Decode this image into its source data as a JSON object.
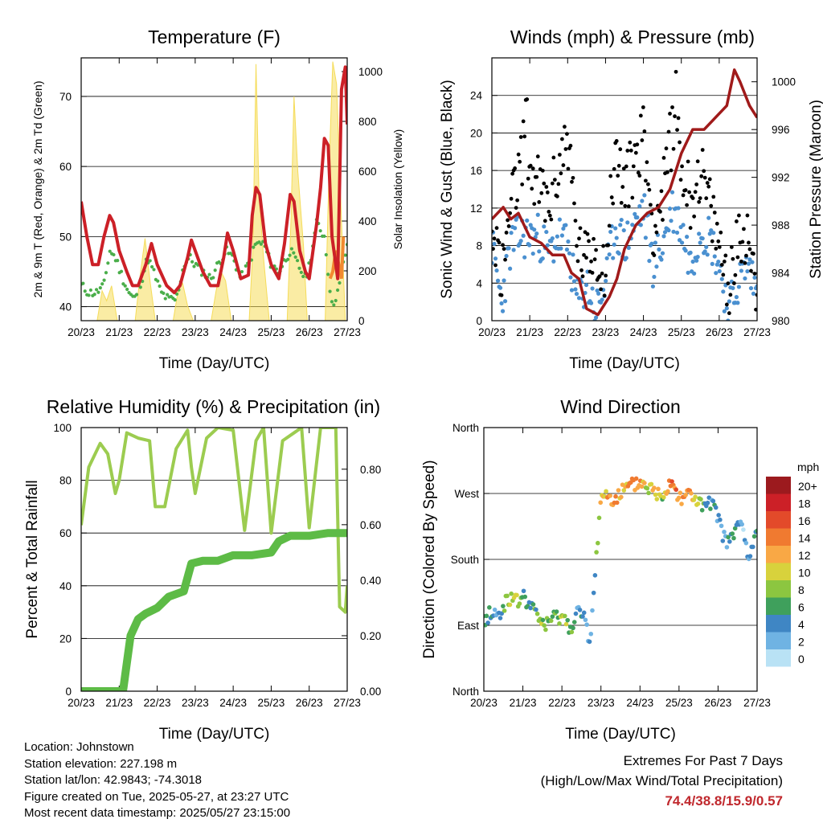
{
  "colors": {
    "temp2m": "#cc2027",
    "temp9m": "#f28a30",
    "dewpoint": "#4aae4a",
    "solar": "#f5dc5a",
    "gust": "#000000",
    "wind": "#4a90d0",
    "pressure": "#a01a1a",
    "humidity": "#9ccc50",
    "precip": "#5dbb46",
    "extremes": "#c0282d"
  },
  "chart_data": [
    {
      "id": "temperature",
      "type": "line",
      "title": "Temperature (F)",
      "xlabel": "Time (Day/UTC)",
      "ylabel": "2m & 9m T (Red, Orange) & 2m Td (Green)",
      "y2label": "Solar Insolation (Yellow)",
      "xlim": [
        0,
        7
      ],
      "ylim": [
        38,
        75.5
      ],
      "y2lim": [
        0,
        1055
      ],
      "x_ticks": [
        "20/23",
        "21/23",
        "22/23",
        "23/23",
        "24/23",
        "25/23",
        "26/23",
        "27/23"
      ],
      "y_ticks": [
        40,
        50,
        60,
        70
      ],
      "y2_ticks": [
        0,
        200,
        400,
        600,
        800,
        1000
      ],
      "grid": "horizontal",
      "series": [
        {
          "key": "solar",
          "axis": "y2",
          "style": "fill",
          "x": [
            0.0,
            0.42,
            0.55,
            0.67,
            0.8,
            0.95,
            1.42,
            1.55,
            1.68,
            1.82,
            1.95,
            2.42,
            2.55,
            2.67,
            2.8,
            2.95,
            3.42,
            3.55,
            3.67,
            3.8,
            3.95,
            4.42,
            4.52,
            4.6,
            4.68,
            4.8,
            4.95,
            5.42,
            5.52,
            5.6,
            5.7,
            5.85,
            5.95,
            6.42,
            6.52,
            6.62,
            6.72,
            6.85,
            6.95,
            7.0
          ],
          "values": [
            0,
            0,
            120,
            80,
            140,
            0,
            0,
            180,
            330,
            150,
            0,
            0,
            120,
            150,
            60,
            0,
            0,
            120,
            200,
            160,
            0,
            0,
            300,
            1030,
            500,
            250,
            0,
            0,
            400,
            900,
            600,
            300,
            0,
            0,
            600,
            1040,
            950,
            400,
            0,
            0
          ]
        },
        {
          "key": "temp2m",
          "axis": "y",
          "style": "line",
          "x": [
            0.0,
            0.15,
            0.3,
            0.45,
            0.6,
            0.75,
            0.85,
            1.0,
            1.2,
            1.35,
            1.5,
            1.7,
            1.85,
            2.0,
            2.25,
            2.45,
            2.6,
            2.8,
            2.9,
            3.0,
            3.2,
            3.4,
            3.6,
            3.75,
            3.85,
            4.0,
            4.2,
            4.4,
            4.5,
            4.6,
            4.7,
            4.85,
            5.0,
            5.2,
            5.35,
            5.5,
            5.6,
            5.75,
            5.9,
            6.0,
            6.2,
            6.3,
            6.4,
            6.5,
            6.6,
            6.75,
            6.85,
            6.95,
            7.0
          ],
          "values": [
            55,
            50,
            46,
            46,
            50,
            53,
            52,
            48,
            45,
            43,
            43,
            46,
            49,
            46,
            43,
            42,
            43,
            47,
            49.5,
            48,
            45,
            43,
            43,
            47,
            50.5,
            48,
            44,
            44.5,
            53,
            57,
            56,
            49,
            46,
            44,
            49,
            56,
            55,
            48,
            45,
            44,
            52,
            57,
            64,
            63,
            50,
            44,
            71,
            74.2,
            66
          ]
        },
        {
          "key": "temp9m",
          "axis": "y",
          "style": "line",
          "x": [
            6.55,
            6.62,
            6.7,
            6.78,
            6.85,
            6.9
          ],
          "values": [
            44,
            45,
            48,
            46,
            44,
            50
          ]
        },
        {
          "key": "dewpoint",
          "axis": "y",
          "style": "points",
          "x": [
            0.0,
            0.2,
            0.4,
            0.6,
            0.75,
            0.9,
            1.1,
            1.25,
            1.4,
            1.6,
            1.75,
            1.9,
            2.1,
            2.3,
            2.5,
            2.7,
            2.85,
            3.0,
            3.2,
            3.4,
            3.6,
            3.8,
            4.0,
            4.2,
            4.4,
            4.6,
            4.8,
            5.0,
            5.2,
            5.4,
            5.5,
            5.7,
            5.9,
            6.0,
            6.2,
            6.4,
            6.6,
            6.8,
            7.0
          ],
          "values": [
            43,
            42,
            42,
            43,
            48,
            47,
            44,
            42,
            41,
            44,
            47,
            45,
            42,
            41,
            41,
            46,
            47,
            46,
            45,
            44,
            46,
            48,
            47,
            44,
            46,
            49,
            49,
            46,
            45,
            47,
            48,
            46,
            44,
            46,
            52,
            50,
            40,
            43,
            49
          ]
        }
      ]
    },
    {
      "id": "winds",
      "type": "scatter",
      "title": "Winds (mph) & Pressure (mb)",
      "xlabel": "Time (Day/UTC)",
      "ylabel": "Sonic Wind & Gust (Blue, Black)",
      "y2label": "Station Pressure (Maroon)",
      "xlim": [
        0,
        7
      ],
      "ylim": [
        0,
        28
      ],
      "y2lim": [
        980,
        1002
      ],
      "x_ticks": [
        "20/23",
        "21/23",
        "22/23",
        "23/23",
        "24/23",
        "25/23",
        "26/23",
        "27/23"
      ],
      "y_ticks": [
        0,
        4,
        8,
        12,
        16,
        20,
        24
      ],
      "y2_ticks": [
        980,
        984,
        988,
        992,
        996,
        1000
      ],
      "grid": "horizontal",
      "series": [
        {
          "key": "gust",
          "axis": "y",
          "style": "points",
          "x": [
            0.0,
            0.25,
            0.5,
            0.75,
            0.9,
            1.0,
            1.25,
            1.5,
            1.75,
            2.0,
            2.25,
            2.5,
            2.7,
            2.9,
            3.0,
            3.25,
            3.5,
            3.75,
            4.0,
            4.25,
            4.5,
            4.75,
            4.85,
            5.0,
            5.25,
            5.5,
            5.75,
            6.0,
            6.25,
            6.5,
            6.75,
            7.0
          ],
          "values": [
            12,
            4,
            12,
            16,
            22,
            16,
            14,
            12,
            16,
            20,
            8,
            6,
            8,
            6,
            6,
            18,
            14,
            17,
            20,
            10,
            13,
            20,
            24,
            16,
            13,
            16,
            12,
            8,
            4,
            8,
            10,
            3
          ]
        },
        {
          "key": "wind",
          "axis": "y",
          "style": "points",
          "x": [
            0.0,
            0.25,
            0.5,
            0.75,
            1.0,
            1.25,
            1.5,
            1.75,
            2.0,
            2.25,
            2.5,
            2.75,
            3.0,
            3.25,
            3.5,
            3.75,
            4.0,
            4.25,
            4.5,
            4.75,
            5.0,
            5.25,
            5.5,
            5.75,
            6.0,
            6.25,
            6.5,
            6.75,
            7.0
          ],
          "values": [
            8,
            2,
            8,
            9,
            9,
            9,
            7,
            9,
            8,
            2,
            4,
            1,
            4,
            10,
            8,
            10,
            12,
            6,
            8,
            12,
            10,
            6,
            10,
            9,
            6,
            1,
            4,
            6,
            3
          ]
        },
        {
          "key": "pressure",
          "axis": "y2",
          "style": "line",
          "x": [
            0.0,
            0.3,
            0.5,
            0.7,
            1.0,
            1.3,
            1.6,
            1.9,
            2.1,
            2.3,
            2.5,
            2.8,
            3.1,
            3.3,
            3.5,
            3.8,
            4.1,
            4.4,
            4.7,
            5.0,
            5.3,
            5.6,
            5.9,
            6.2,
            6.4,
            6.55,
            6.8,
            7.0
          ],
          "values": [
            988.5,
            989.5,
            988.5,
            989,
            987,
            986.5,
            985.5,
            985.5,
            984,
            983.5,
            981,
            980.5,
            982,
            983.5,
            986,
            988,
            989,
            989.5,
            991,
            994,
            996,
            996,
            997,
            998,
            1001,
            1000,
            998,
            997
          ]
        }
      ]
    },
    {
      "id": "humidity",
      "type": "line",
      "title": "Relative Humidity (%) & Precipitation (in)",
      "xlabel": "Time (Day/UTC)",
      "ylabel": "Percent & Total Rainfall",
      "xlim": [
        0,
        7
      ],
      "ylim": [
        0,
        100
      ],
      "y2lim": [
        0,
        0.95
      ],
      "x_ticks": [
        "20/23",
        "21/23",
        "22/23",
        "23/23",
        "24/23",
        "25/23",
        "26/23",
        "27/23"
      ],
      "y_ticks": [
        0,
        20,
        40,
        60,
        80,
        100
      ],
      "y2_ticks": [
        "0.00",
        "0.20",
        "0.40",
        "0.60",
        "0.80"
      ],
      "grid": "horizontal",
      "series": [
        {
          "key": "humidity",
          "axis": "y",
          "style": "line",
          "x": [
            0.0,
            0.2,
            0.5,
            0.7,
            0.9,
            1.0,
            1.2,
            1.5,
            1.8,
            1.95,
            2.2,
            2.5,
            2.8,
            2.9,
            3.0,
            3.3,
            3.6,
            4.0,
            4.3,
            4.6,
            4.8,
            5.0,
            5.3,
            5.6,
            5.8,
            6.0,
            6.3,
            6.5,
            6.7,
            6.8,
            6.95,
            7.0
          ],
          "values": [
            63,
            85,
            94,
            90,
            75,
            80,
            98,
            96,
            95,
            70,
            70,
            92,
            99,
            85,
            75,
            96,
            100,
            99,
            61,
            95,
            100,
            60,
            95,
            98,
            100,
            62,
            100,
            100,
            100,
            32,
            30,
            40
          ]
        },
        {
          "key": "precip",
          "axis": "y2",
          "style": "line",
          "x": [
            0.0,
            1.1,
            1.2,
            1.3,
            1.5,
            1.7,
            2.0,
            2.3,
            2.7,
            2.9,
            3.2,
            3.6,
            4.0,
            4.5,
            5.0,
            5.2,
            5.5,
            6.0,
            6.5,
            7.0
          ],
          "values": [
            0.0,
            0.0,
            0.1,
            0.2,
            0.26,
            0.28,
            0.3,
            0.34,
            0.36,
            0.46,
            0.47,
            0.47,
            0.49,
            0.49,
            0.5,
            0.54,
            0.56,
            0.56,
            0.57,
            0.57
          ]
        }
      ]
    },
    {
      "id": "wind_direction",
      "type": "scatter",
      "title": "Wind Direction",
      "xlabel": "Time (Day/UTC)",
      "ylabel": "Direction (Colored By Speed)",
      "xlim": [
        0,
        7
      ],
      "ylim": [
        0,
        360
      ],
      "x_ticks": [
        "20/23",
        "21/23",
        "22/23",
        "23/23",
        "24/23",
        "25/23",
        "26/23",
        "27/23"
      ],
      "y_ticks": [
        "North",
        "East",
        "South",
        "West",
        "North"
      ],
      "grid": "horizontal",
      "colorbar": {
        "title": "mph",
        "labels": [
          "20+",
          "18",
          "16",
          "14",
          "12",
          "10",
          "8",
          "6",
          "4",
          "2",
          "0"
        ],
        "colors": [
          "#9c1a1e",
          "#cc2027",
          "#e34a2a",
          "#f07a30",
          "#f9a845",
          "#d8d23c",
          "#8cc640",
          "#3fa05c",
          "#3f86c4",
          "#6fb3e3",
          "#b9e2f5"
        ]
      },
      "series": [
        {
          "key": "direction",
          "x": [
            0.0,
            0.2,
            0.4,
            0.6,
            0.8,
            1.0,
            1.2,
            1.4,
            1.6,
            1.8,
            2.0,
            2.2,
            2.4,
            2.6,
            2.7,
            2.8,
            3.0,
            3.2,
            3.4,
            3.6,
            3.8,
            4.0,
            4.2,
            4.4,
            4.6,
            4.8,
            5.0,
            5.2,
            5.4,
            5.6,
            5.8,
            6.0,
            6.2,
            6.4,
            6.6,
            6.8,
            7.0
          ],
          "values": [
            95,
            110,
            100,
            130,
            120,
            130,
            115,
            100,
            90,
            100,
            105,
            85,
            110,
            95,
            60,
            120,
            270,
            265,
            265,
            275,
            280,
            285,
            280,
            270,
            270,
            290,
            265,
            270,
            265,
            250,
            255,
            240,
            200,
            215,
            230,
            175,
            225
          ],
          "speeds": [
            5,
            4,
            3,
            8,
            10,
            6,
            4,
            7,
            9,
            6,
            9,
            7,
            4,
            3,
            2,
            3,
            10,
            12,
            13,
            9,
            14,
            12,
            9,
            11,
            8,
            16,
            12,
            13,
            11,
            6,
            4,
            3,
            3,
            4,
            2,
            3,
            4
          ]
        }
      ]
    }
  ],
  "footer": {
    "location": "Location: Johnstown",
    "elevation": "Station elevation: 227.198 m",
    "latlon": "Station lat/lon: 42.9843; -74.3018",
    "created": "Figure created on Tue, 2025-05-27, at 23:27 UTC",
    "timestamp": "Most recent data timestamp: 2025/05/27 23:15:00"
  },
  "extremes": {
    "title": "Extremes For Past 7 Days",
    "subtitle": "(High/Low/Max Wind/Total Precipitation)",
    "values": "74.4/38.8/15.9/0.57"
  }
}
